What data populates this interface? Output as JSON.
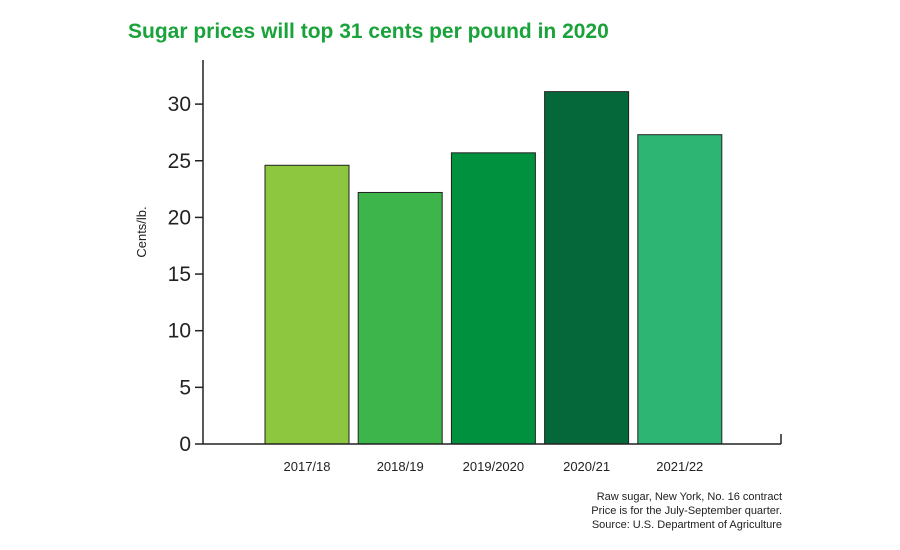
{
  "chart_data": {
    "type": "bar",
    "title": "Sugar prices will top 31 cents per pound in 2020",
    "ylabel": "Cents/lb.",
    "xlabel": "",
    "categories": [
      "2017/18",
      "2018/19",
      "2019/2020",
      "2020/21",
      "2021/22"
    ],
    "values": [
      24.6,
      22.2,
      25.7,
      31.1,
      27.3
    ],
    "bar_colors": [
      "#8dc63f",
      "#3db54a",
      "#00913f",
      "#05683a",
      "#2db573"
    ],
    "ylim": [
      0,
      34
    ],
    "yticks": [
      0,
      5,
      10,
      15,
      20,
      25,
      30
    ],
    "grid": false,
    "legend": "none"
  },
  "footnotes": [
    "Raw sugar, New York, No. 16 contract",
    "Price is for  the July-September quarter.",
    "Source: U.S. Department of Agriculture"
  ]
}
